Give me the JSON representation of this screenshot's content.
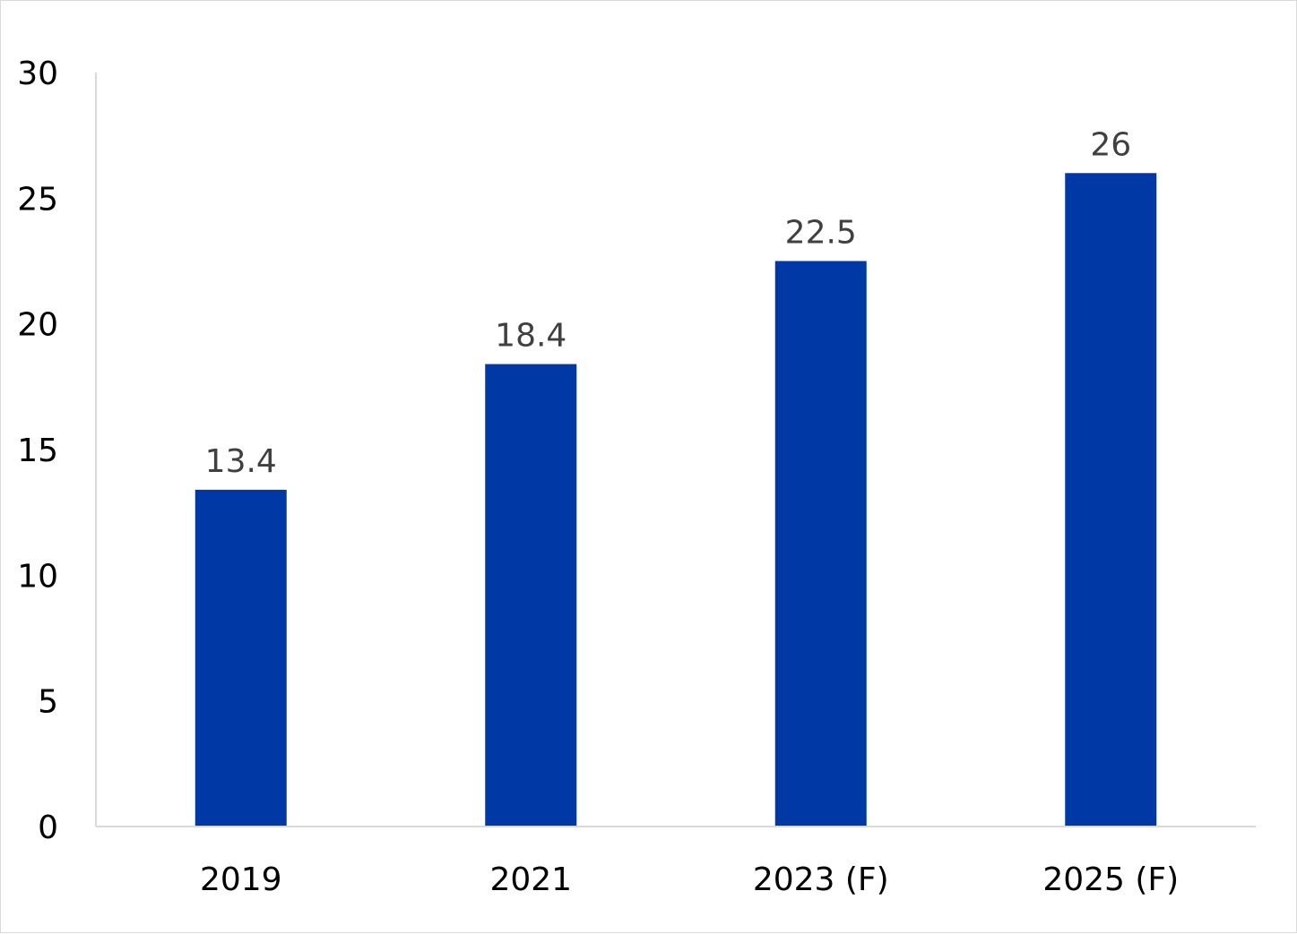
{
  "chart_data": {
    "type": "bar",
    "title": "",
    "xlabel": "",
    "ylabel": "",
    "categories": [
      "2019",
      "2021",
      "2023 (F)",
      "2025 (F)"
    ],
    "series": [
      {
        "values": [
          13.4,
          18.4,
          22.5,
          26
        ],
        "data_labels": [
          "13.4",
          "18.4",
          "22.5",
          "26"
        ],
        "color": "#0039A6"
      }
    ],
    "ylim": [
      0,
      30
    ],
    "y_ticks": [
      "0",
      "5",
      "10",
      "15",
      "20",
      "25",
      "30"
    ],
    "grid": false,
    "legend": "none",
    "axis_color": "#d9d9d9"
  }
}
